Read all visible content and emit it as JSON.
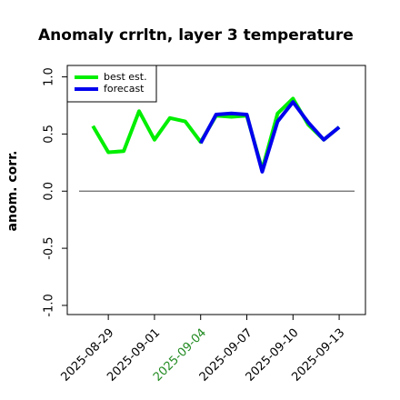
{
  "chart_data": {
    "type": "line",
    "title": "Anomaly crrltn, layer 3 temperature",
    "ylabel": "anom. corr.",
    "x": [
      "2025-08-28",
      "2025-08-29",
      "2025-08-30",
      "2025-08-31",
      "2025-09-01",
      "2025-09-02",
      "2025-09-03",
      "2025-09-04",
      "2025-09-05",
      "2025-09-06",
      "2025-09-07",
      "2025-09-08",
      "2025-09-09",
      "2025-09-10",
      "2025-09-11",
      "2025-09-12",
      "2025-09-13"
    ],
    "series": [
      {
        "name": "best est.",
        "color": "#00ee00",
        "values": [
          0.57,
          0.34,
          0.35,
          0.7,
          0.45,
          0.64,
          0.61,
          0.43,
          0.66,
          0.65,
          0.66,
          0.19,
          0.68,
          0.81,
          0.58,
          0.45,
          0.56
        ]
      },
      {
        "name": "forecast",
        "color": "#0000ee",
        "values": [
          null,
          null,
          null,
          null,
          null,
          null,
          null,
          0.42,
          0.67,
          0.68,
          0.67,
          0.17,
          0.61,
          0.78,
          0.6,
          0.45,
          0.56
        ]
      }
    ],
    "xlim": [
      "2025-08-26T08:00Z",
      "2025-09-14T17:00Z"
    ],
    "xticks": [
      "2025-08-29",
      "2025-09-01",
      "2025-09-04",
      "2025-09-07",
      "2025-09-10",
      "2025-09-13"
    ],
    "xtick_colors": [
      "#000000",
      "#000000",
      "#228b22",
      "#000000",
      "#000000",
      "#000000"
    ],
    "ylim": [
      -1.08,
      1.1
    ],
    "yticks": [
      {
        "value": -1,
        "label": "-1.0"
      },
      {
        "value": -0.5,
        "label": "-0.5"
      },
      {
        "value": 0,
        "label": "0.0"
      },
      {
        "value": 0.5,
        "label": "0.5"
      },
      {
        "value": 1,
        "label": "1.0"
      }
    ],
    "hline": 0,
    "legend": "upper left"
  }
}
